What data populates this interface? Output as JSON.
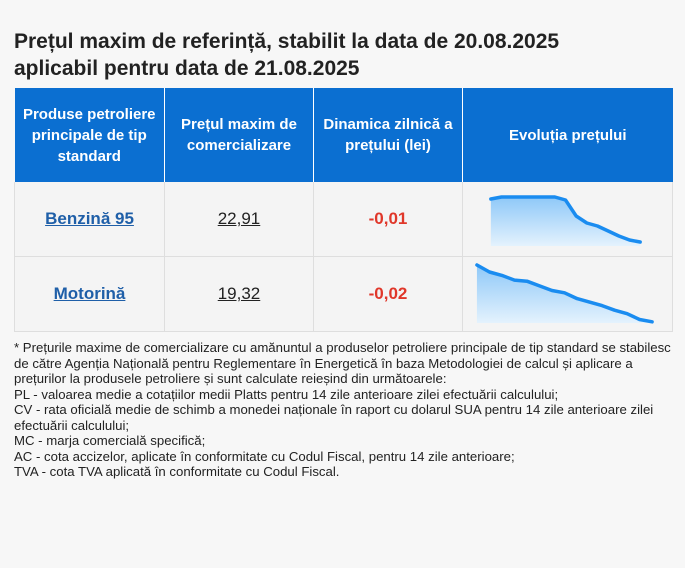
{
  "page": {
    "title_line1": "Prețul maxim de referință, stabilit la data de 20.08.2025",
    "title_line2": "aplicabil pentru data de 21.08.2025"
  },
  "table": {
    "headers": [
      "Produse petroliere principale de tip standard",
      "Prețul maxim de comercializare",
      "Dinamica zilnică a prețului (lei)",
      "Evoluția prețului"
    ],
    "rows": [
      {
        "product": "Benzină 95",
        "price": "22,91",
        "change": "-0,01",
        "trend": [
          0.94,
          0.98,
          0.98,
          0.98,
          0.98,
          0.98,
          0.98,
          0.92,
          0.6,
          0.46,
          0.4,
          0.3,
          0.2,
          0.12,
          0.08
        ]
      },
      {
        "product": "Motorină",
        "price": "19,32",
        "change": "-0,02",
        "trend": [
          1.0,
          0.88,
          0.82,
          0.74,
          0.72,
          0.64,
          0.56,
          0.52,
          0.42,
          0.36,
          0.3,
          0.22,
          0.16,
          0.06,
          0.02
        ]
      }
    ]
  },
  "colors": {
    "header_bg": "#0b6fd1",
    "product_link": "#1f5fa8",
    "negative_change": "#e0372a",
    "trend_line": "#1a8cf0",
    "trend_fill_top": "#8ec8f8",
    "trend_fill_bottom": "#e4f2fd"
  },
  "notes": [
    "* Prețurile maxime de comercializare cu amănuntul a produselor petroliere principale de tip standard se stabilesc de către Agenția Națională pentru Reglementare în Energetică în baza Metodologiei de calcul și aplicare a prețurilor la produsele petroliere și sunt calculate reieșind din următoarele:",
    "PL - valoarea medie a cotațiilor medii Platts pentru 14 zile anterioare zilei efectuării calculului;",
    "CV - rata oficială medie de schimb a monedei naționale în raport cu dolarul SUA pentru 14 zile anterioare zilei efectuării calculului;",
    "MC - marja comercială specifică;",
    "AC - cota accizelor, aplicate în conformitate cu Codul Fiscal, pentru 14 zile anterioare;",
    "TVA - cota TVA aplicată în conformitate cu Codul Fiscal."
  ]
}
